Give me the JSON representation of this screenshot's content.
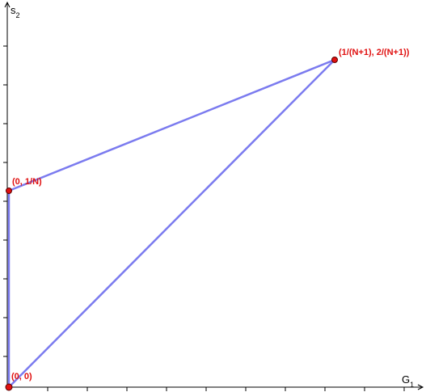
{
  "figure": {
    "colors": {
      "edge": "#7b7bef",
      "point_fill": "#e01010",
      "point_stroke": "#5a0000",
      "label": "#e01010",
      "axis": "#000000"
    },
    "axes": {
      "x_label": "G",
      "x_label_sub": "1",
      "y_label": "s",
      "y_label_sub": "2"
    },
    "points": [
      {
        "id": "origin",
        "label": "(0, 0)"
      },
      {
        "id": "left",
        "label": "(0, 1/N)"
      },
      {
        "id": "right",
        "label": "(1/(N+1), 2/(N+1))"
      }
    ],
    "edges": [
      {
        "from": "origin",
        "to": "left"
      },
      {
        "from": "left",
        "to": "right"
      },
      {
        "from": "origin",
        "to": "right"
      }
    ]
  }
}
